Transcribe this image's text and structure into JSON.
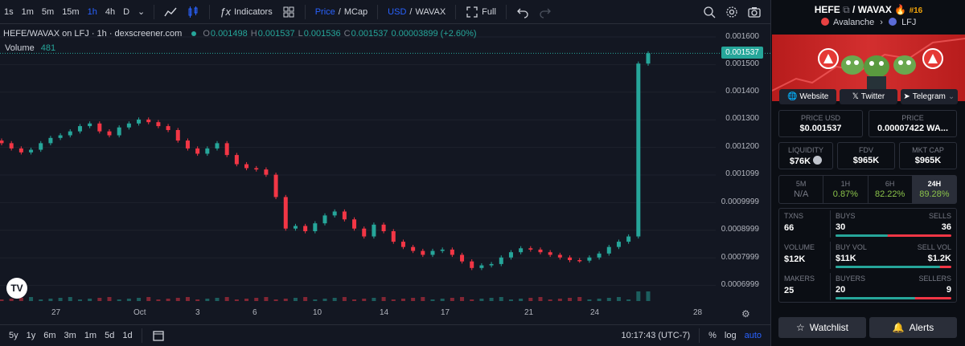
{
  "toolbar": {
    "timeframes": [
      "1s",
      "1m",
      "5m",
      "15m",
      "1h",
      "4h",
      "D"
    ],
    "active_timeframe": "1h",
    "indicators_label": "Indicators",
    "price_label": "Price",
    "mcap_label": "MCap",
    "usd_label": "USD",
    "wavax_label": "WAVAX",
    "full_label": "Full"
  },
  "legend": {
    "symbol": "HEFE/WAVAX on LFJ · 1h · dexscreener.com",
    "o_label": "O",
    "o": "0.001498",
    "h_label": "H",
    "h": "0.001537",
    "l_label": "L",
    "l": "0.001536",
    "c_label": "C",
    "c": "0.001537",
    "change": "0.00003899 (+2.60%)",
    "volume_label": "Volume",
    "volume_value": "481"
  },
  "price_axis": [
    "0.001600",
    "0.001500",
    "0.001400",
    "0.001300",
    "0.001200",
    "0.001099",
    "0.0009999",
    "0.0008999",
    "0.0007999",
    "0.0006999"
  ],
  "last_price": "0.001537",
  "time_axis": [
    "27",
    "Oct",
    "3",
    "6",
    "10",
    "14",
    "17",
    "21",
    "24",
    "28"
  ],
  "bottom": {
    "ranges": [
      "5y",
      "1y",
      "6m",
      "3m",
      "1m",
      "5d",
      "1d"
    ],
    "clock": "10:17:43 (UTC-7)",
    "pct": "%",
    "log": "log",
    "auto": "auto"
  },
  "chart_data": {
    "type": "candlestick",
    "title": "HEFE/WAVAX on LFJ · 1h · dexscreener.com",
    "ylim": [
      0.00064,
      0.00163
    ],
    "x_ticks": [
      "27",
      "Oct",
      "3",
      "6",
      "10",
      "14",
      "17",
      "21",
      "24",
      "28"
    ],
    "close_series": [
      0.001195,
      0.001175,
      0.00116,
      0.00117,
      0.001195,
      0.001215,
      0.001225,
      0.00124,
      0.00126,
      0.00127,
      0.00124,
      0.001225,
      0.001255,
      0.00127,
      0.001285,
      0.001275,
      0.00126,
      0.001245,
      0.001205,
      0.001175,
      0.001155,
      0.001175,
      0.001195,
      0.00115,
      0.001115,
      0.0011,
      0.001095,
      0.001075,
      0.00099,
      0.00087,
      0.00088,
      0.00086,
      0.00089,
      0.00092,
      0.000935,
      0.000905,
      0.00087,
      0.00084,
      0.000885,
      0.00086,
      0.00082,
      0.0008,
      0.000785,
      0.00077,
      0.000785,
      0.00079,
      0.00077,
      0.000745,
      0.00072,
      0.00073,
      0.000735,
      0.00076,
      0.00078,
      0.000795,
      0.00079,
      0.00078,
      0.00077,
      0.00076,
      0.00075,
      0.000748,
      0.00076,
      0.000775,
      0.0008,
      0.00082,
      0.00084,
      0.001498,
      0.001537
    ],
    "last": 0.001537
  },
  "side": {
    "base": "HEFE",
    "quote": "WAVAX",
    "rank": "#16",
    "chain": "Avalanche",
    "dex": "LFJ",
    "links": [
      "Website",
      "Twitter",
      "Telegram"
    ],
    "price_usd_label": "PRICE USD",
    "price_usd": "$0.001537",
    "price_label": "PRICE",
    "price": "0.00007422 WA...",
    "liquidity_label": "LIQUIDITY",
    "liquidity": "$76K",
    "fdv_label": "FDV",
    "fdv": "$965K",
    "mcap_label": "MKT CAP",
    "mcap": "$965K",
    "tabs": [
      {
        "label": "5M",
        "value": "N/A"
      },
      {
        "label": "1H",
        "value": "0.87%"
      },
      {
        "label": "6H",
        "value": "82.22%"
      },
      {
        "label": "24H",
        "value": "89.28%"
      }
    ],
    "txns_label": "TXNS",
    "txns": "66",
    "buys_label": "BUYS",
    "buys": "30",
    "sells_label": "SELLS",
    "sells": "36",
    "volume_label": "VOLUME",
    "volume": "$12K",
    "buy_vol_label": "BUY VOL",
    "buy_vol": "$11K",
    "sell_vol_label": "SELL VOL",
    "sell_vol": "$1.2K",
    "makers_label": "MAKERS",
    "makers": "25",
    "buyers_label": "BUYERS",
    "buyers": "20",
    "sellers_label": "SELLERS",
    "sellers": "9",
    "watchlist_label": "Watchlist",
    "alerts_label": "Alerts"
  },
  "colors": {
    "up": "#26a69a",
    "down": "#f23645",
    "accent": "#2962ff",
    "rank": "#f0a30a"
  }
}
